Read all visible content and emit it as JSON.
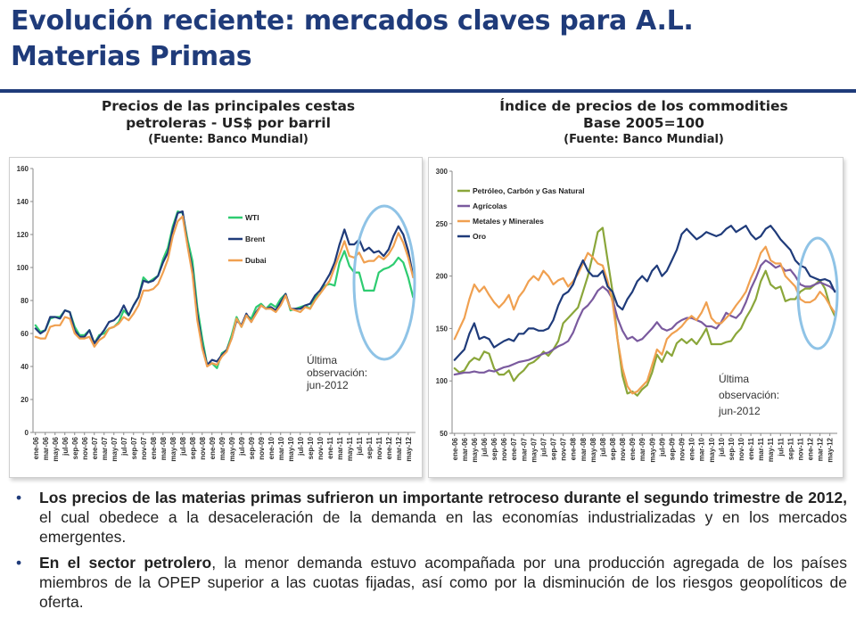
{
  "slide": {
    "title_line1": "Evolución reciente:  mercados claves para A.L.",
    "title_line2": "Materias Primas"
  },
  "left_panel": {
    "title_line1": "Precios de las principales cestas",
    "title_line2": "petroleras - US$ por barril",
    "source": "(Fuente: Banco Mundial)"
  },
  "right_panel": {
    "title_line1": "Índice de precios de los commodities",
    "title_line2": "Base 2005=100",
    "source": "(Fuente: Banco Mundial)"
  },
  "bullets": [
    {
      "bold": "Los precios de las materias primas sufrieron un importante retroceso durante el segundo trimestre de 2012,",
      "text": " el cual obedece a la desaceleración de la demanda en las economías industrializadas y en los mercados emergentes."
    },
    {
      "bold": "En el sector petrolero",
      "text": ", la menor demanda estuvo acompañada por una producción agregada de los países miembros de la OPEP superior a las cuotas fijadas, así como por la disminución de los riesgos geopolíticos de oferta."
    }
  ],
  "colors": {
    "title": "#1f3b7a",
    "highlight_circle": "#8fc3e6"
  },
  "chart_data": [
    {
      "type": "line",
      "title": "",
      "xlabel": "",
      "ylabel": "",
      "ylim": [
        0,
        160
      ],
      "yticks": [
        0,
        20,
        40,
        60,
        80,
        100,
        120,
        140,
        160
      ],
      "grid": false,
      "legend": "upper-center",
      "x": [
        "ene-06",
        "feb-06",
        "mar-06",
        "abr-06",
        "may-06",
        "jun-06",
        "jul-06",
        "ago-06",
        "sep-06",
        "oct-06",
        "nov-06",
        "dic-06",
        "ene-07",
        "feb-07",
        "mar-07",
        "abr-07",
        "may-07",
        "jun-07",
        "jul-07",
        "ago-07",
        "sep-07",
        "oct-07",
        "nov-07",
        "dic-07",
        "ene-08",
        "feb-08",
        "mar-08",
        "abr-08",
        "may-08",
        "jun-08",
        "jul-08",
        "ago-08",
        "sep-08",
        "oct-08",
        "nov-08",
        "dic-08",
        "ene-09",
        "feb-09",
        "mar-09",
        "abr-09",
        "may-09",
        "jun-09",
        "jul-09",
        "ago-09",
        "sep-09",
        "oct-09",
        "nov-09",
        "dic-09",
        "ene-10",
        "feb-10",
        "mar-10",
        "abr-10",
        "may-10",
        "jun-10",
        "jul-10",
        "ago-10",
        "sep-10",
        "oct-10",
        "nov-10",
        "dic-10",
        "ene-11",
        "feb-11",
        "mar-11",
        "abr-11",
        "may-11",
        "jun-11",
        "jul-11",
        "ago-11",
        "sep-11",
        "oct-11",
        "nov-11",
        "dic-11",
        "ene-12",
        "feb-12",
        "mar-12",
        "abr-12",
        "may-12",
        "jun-12"
      ],
      "xticklabels": [
        "ene-06",
        "mar-06",
        "may-06",
        "jul-06",
        "sep-06",
        "nov-06",
        "ene-07",
        "mar-07",
        "may-07",
        "jul-07",
        "sep-07",
        "nov-07",
        "ene-08",
        "mar-08",
        "may-08",
        "jul-08",
        "sep-08",
        "nov-08",
        "ene-09",
        "mar-09",
        "may-09",
        "jul-09",
        "sep-09",
        "nov-09",
        "ene-10",
        "mar-10",
        "may-10",
        "jul-10",
        "sep-10",
        "nov-10",
        "ene-11",
        "mar-11",
        "may-11",
        "jul-11",
        "sep-11",
        "nov-11",
        "ene-12",
        "mar-12",
        "may-12"
      ],
      "series": [
        {
          "name": "WTI",
          "color": "#2ecc71",
          "values": [
            65,
            61,
            62,
            69,
            70,
            70,
            74,
            73,
            64,
            59,
            59,
            62,
            54,
            59,
            60,
            63,
            64,
            67,
            74,
            71,
            77,
            82,
            94,
            91,
            93,
            95,
            105,
            112,
            125,
            134,
            133,
            117,
            104,
            76,
            57,
            41,
            42,
            39,
            48,
            50,
            59,
            70,
            64,
            71,
            69,
            76,
            78,
            75,
            78,
            76,
            81,
            84,
            74,
            75,
            76,
            77,
            75,
            82,
            84,
            89,
            90,
            89,
            103,
            110,
            101,
            97,
            97,
            86,
            86,
            86,
            97,
            99,
            100,
            102,
            106,
            103,
            94,
            82
          ]
        },
        {
          "name": "Brent",
          "color": "#1f3b7a",
          "values": [
            63,
            60,
            62,
            70,
            70,
            69,
            74,
            73,
            62,
            58,
            58,
            62,
            54,
            58,
            62,
            67,
            68,
            71,
            77,
            71,
            77,
            82,
            92,
            91,
            92,
            95,
            103,
            109,
            123,
            133,
            134,
            114,
            99,
            72,
            53,
            41,
            44,
            43,
            47,
            50,
            57,
            68,
            65,
            72,
            67,
            73,
            77,
            75,
            76,
            74,
            79,
            84,
            75,
            75,
            75,
            77,
            78,
            83,
            86,
            91,
            96,
            103,
            114,
            123,
            114,
            114,
            117,
            110,
            112,
            109,
            110,
            107,
            111,
            119,
            125,
            120,
            110,
            95
          ]
        },
        {
          "name": "Dubai",
          "color": "#f0a050",
          "values": [
            58,
            57,
            57,
            64,
            65,
            65,
            70,
            69,
            60,
            57,
            57,
            58,
            52,
            56,
            58,
            63,
            64,
            66,
            70,
            68,
            72,
            77,
            86,
            86,
            87,
            90,
            97,
            105,
            119,
            128,
            131,
            113,
            96,
            68,
            51,
            40,
            42,
            41,
            46,
            49,
            57,
            69,
            64,
            71,
            67,
            72,
            77,
            75,
            75,
            73,
            77,
            83,
            75,
            74,
            73,
            76,
            75,
            80,
            84,
            88,
            92,
            100,
            108,
            116,
            107,
            106,
            109,
            103,
            104,
            104,
            107,
            105,
            108,
            113,
            121,
            115,
            106,
            94
          ]
        }
      ],
      "annotation": "Última observación: jun-2012",
      "annotation_lines": [
        "Última",
        "observación:",
        "jun-2012"
      ]
    },
    {
      "type": "line",
      "title": "",
      "xlabel": "",
      "ylabel": "",
      "ylim": [
        50,
        300
      ],
      "yticks": [
        50,
        100,
        150,
        200,
        250,
        300
      ],
      "grid": false,
      "legend": "upper-left",
      "x": [
        "ene-06",
        "feb-06",
        "mar-06",
        "abr-06",
        "may-06",
        "jun-06",
        "jul-06",
        "ago-06",
        "sep-06",
        "oct-06",
        "nov-06",
        "dic-06",
        "ene-07",
        "feb-07",
        "mar-07",
        "abr-07",
        "may-07",
        "jun-07",
        "jul-07",
        "ago-07",
        "sep-07",
        "oct-07",
        "nov-07",
        "dic-07",
        "ene-08",
        "feb-08",
        "mar-08",
        "abr-08",
        "may-08",
        "jun-08",
        "jul-08",
        "ago-08",
        "sep-08",
        "oct-08",
        "nov-08",
        "dic-08",
        "ene-09",
        "feb-09",
        "mar-09",
        "abr-09",
        "may-09",
        "jun-09",
        "jul-09",
        "ago-09",
        "sep-09",
        "oct-09",
        "nov-09",
        "dic-09",
        "ene-10",
        "feb-10",
        "mar-10",
        "abr-10",
        "may-10",
        "jun-10",
        "jul-10",
        "ago-10",
        "sep-10",
        "oct-10",
        "nov-10",
        "dic-10",
        "ene-11",
        "feb-11",
        "mar-11",
        "abr-11",
        "may-11",
        "jun-11",
        "jul-11",
        "ago-11",
        "sep-11",
        "oct-11",
        "nov-11",
        "dic-11",
        "ene-12",
        "feb-12",
        "mar-12",
        "abr-12",
        "may-12",
        "jun-12"
      ],
      "xticklabels": [
        "ene-06",
        "mar-06",
        "may-06",
        "jul-06",
        "sep-06",
        "nov-06",
        "ene-07",
        "mar-07",
        "may-07",
        "jul-07",
        "sep-07",
        "nov-07",
        "ene-08",
        "mar-08",
        "may-08",
        "jul-08",
        "sep-08",
        "nov-08",
        "ene-09",
        "mar-09",
        "may-09",
        "jul-09",
        "sep-09",
        "nov-09",
        "ene-10",
        "mar-10",
        "may-10",
        "jul-10",
        "sep-10",
        "nov-10",
        "ene-11",
        "mar-11",
        "may-11",
        "jul-11",
        "sep-11",
        "nov-11",
        "ene-12",
        "mar-12",
        "may-12"
      ],
      "series": [
        {
          "name": "Petróleo, Carbón y Gas Natural",
          "color": "#8aa63a",
          "values": [
            112,
            108,
            110,
            118,
            122,
            120,
            128,
            126,
            112,
            106,
            106,
            110,
            100,
            106,
            110,
            116,
            118,
            122,
            128,
            124,
            130,
            138,
            155,
            160,
            165,
            170,
            185,
            200,
            220,
            242,
            246,
            215,
            185,
            140,
            105,
            88,
            90,
            86,
            92,
            96,
            108,
            125,
            118,
            128,
            124,
            136,
            140,
            136,
            140,
            135,
            142,
            150,
            135,
            135,
            135,
            137,
            138,
            145,
            150,
            160,
            168,
            178,
            195,
            205,
            192,
            188,
            190,
            176,
            178,
            178,
            185,
            188,
            188,
            192,
            196,
            188,
            172,
            162
          ]
        },
        {
          "name": "Agrícolas",
          "color": "#7a5a9e",
          "values": [
            106,
            107,
            108,
            108,
            109,
            108,
            108,
            110,
            109,
            111,
            113,
            114,
            116,
            118,
            119,
            120,
            122,
            124,
            126,
            127,
            130,
            133,
            135,
            138,
            146,
            158,
            168,
            172,
            178,
            186,
            190,
            186,
            178,
            160,
            148,
            140,
            142,
            138,
            140,
            145,
            150,
            156,
            150,
            148,
            150,
            155,
            158,
            160,
            160,
            158,
            156,
            152,
            152,
            150,
            156,
            165,
            162,
            160,
            165,
            175,
            188,
            198,
            210,
            215,
            212,
            208,
            210,
            205,
            206,
            200,
            192,
            190,
            190,
            192,
            194,
            192,
            190,
            186
          ]
        },
        {
          "name": "Metales y Minerales",
          "color": "#f0a050",
          "values": [
            140,
            150,
            160,
            178,
            192,
            185,
            190,
            182,
            175,
            170,
            175,
            182,
            168,
            180,
            186,
            195,
            200,
            196,
            205,
            200,
            192,
            196,
            198,
            190,
            195,
            202,
            212,
            222,
            218,
            212,
            210,
            195,
            175,
            140,
            112,
            95,
            88,
            90,
            95,
            100,
            115,
            130,
            125,
            140,
            145,
            148,
            152,
            158,
            162,
            158,
            165,
            175,
            160,
            155,
            155,
            160,
            165,
            172,
            178,
            185,
            198,
            208,
            222,
            228,
            215,
            212,
            212,
            200,
            195,
            190,
            178,
            175,
            175,
            178,
            185,
            180,
            172,
            165
          ]
        },
        {
          "name": "Oro",
          "color": "#1f3b7a",
          "values": [
            120,
            125,
            130,
            145,
            155,
            140,
            142,
            140,
            132,
            135,
            138,
            140,
            138,
            145,
            145,
            150,
            150,
            148,
            148,
            150,
            158,
            172,
            182,
            185,
            192,
            205,
            215,
            205,
            200,
            200,
            205,
            190,
            185,
            172,
            168,
            178,
            185,
            195,
            200,
            195,
            205,
            210,
            200,
            205,
            215,
            225,
            240,
            245,
            240,
            235,
            238,
            242,
            240,
            238,
            240,
            245,
            248,
            242,
            245,
            248,
            240,
            235,
            238,
            245,
            248,
            242,
            235,
            230,
            225,
            215,
            210,
            208,
            200,
            198,
            196,
            197,
            195,
            185
          ]
        }
      ],
      "annotation": "Última observación: jun-2012",
      "annotation_lines": [
        "Última",
        "observación:",
        "jun-2012"
      ]
    }
  ]
}
